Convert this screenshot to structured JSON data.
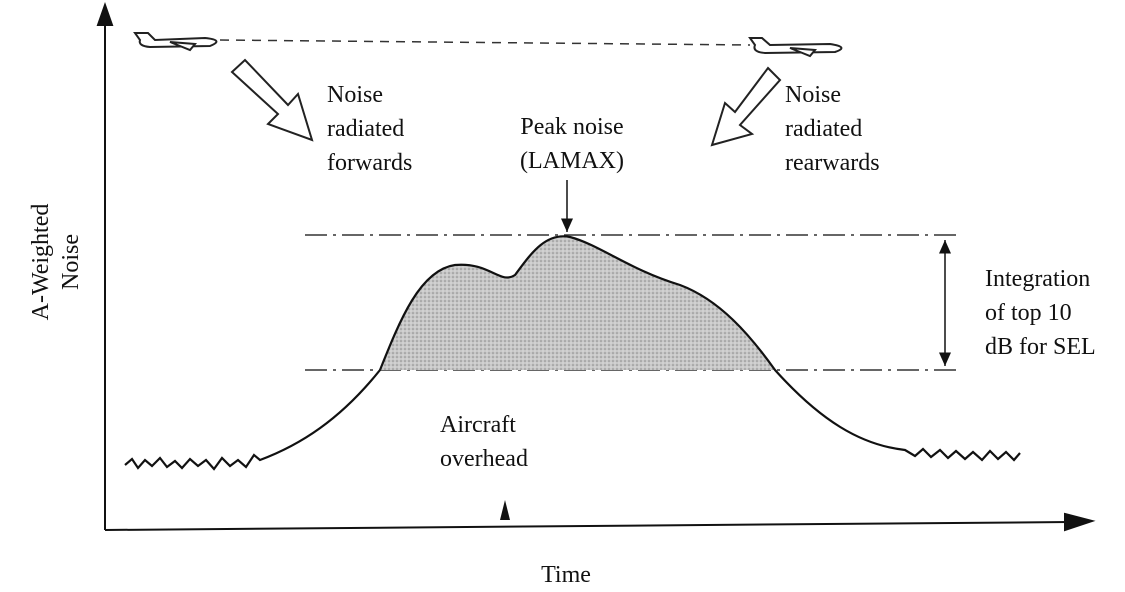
{
  "y_axis_label": [
    "A-Weighted",
    "Noise"
  ],
  "x_axis_label": "Time",
  "annotations": {
    "forward": [
      "Noise",
      "radiated",
      "forwards"
    ],
    "rearward": [
      "Noise",
      "radiated",
      "rearwards"
    ],
    "peak": [
      "Peak noise",
      "(LAMAX)"
    ],
    "integration": [
      "Integration",
      "of top 10",
      "dB for SEL"
    ],
    "overhead": [
      "Aircraft",
      "overhead"
    ]
  }
}
